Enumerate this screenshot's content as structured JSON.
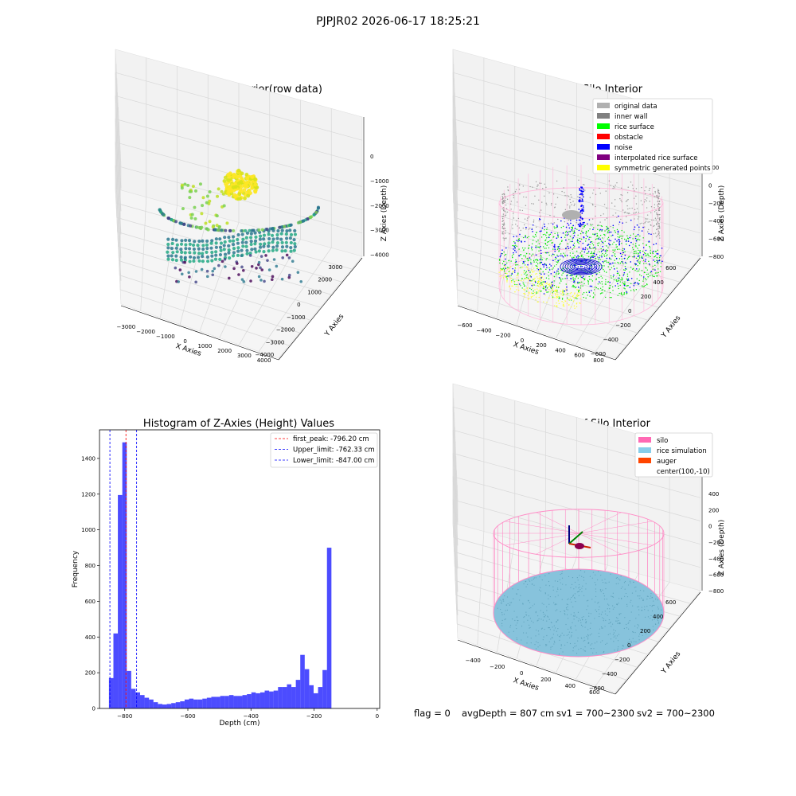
{
  "figure": {
    "suptitle": "PJPJR02 2026-06-17 18:25:21",
    "status": {
      "flag": "flag = 0",
      "avg_depth": "avgDepth = 807 cm",
      "sv1": "sv1 = 700~2300",
      "sv2": "sv2 = 700~2300"
    }
  },
  "chart_data": [
    {
      "id": "raw",
      "type": "scatter",
      "title": "3D Plot of Silo Interior(row data)",
      "xlabel": "X Axies",
      "ylabel": "Y Axies",
      "zlabel": "Z Axies (Depth)",
      "x_ticks": [
        "−3000",
        "−2000",
        "−1000",
        "0",
        "1000",
        "2000",
        "3000",
        "4000"
      ],
      "y_ticks": [
        "−4000",
        "−3000",
        "−2000",
        "−1000",
        "0",
        "1000",
        "2000",
        "3000"
      ],
      "z_ticks": [
        "−4000",
        "−3000",
        "−2000",
        "−1000",
        "0"
      ],
      "colormap": "viridis"
    },
    {
      "id": "classify",
      "type": "scatter",
      "title": "3D classify of Silo Interior",
      "xlabel": "X Axies",
      "ylabel": "Y Axies",
      "zlabel": "Z Axies (Depth)",
      "x_ticks": [
        "−600",
        "−400",
        "−200",
        "0",
        "200",
        "400",
        "600",
        "800"
      ],
      "y_ticks": [
        "−600",
        "−400",
        "−200",
        "0",
        "200",
        "400",
        "600"
      ],
      "z_ticks": [
        "−800",
        "−600",
        "−400",
        "−200",
        "0",
        "200"
      ],
      "legend": [
        {
          "label": "original data",
          "color": "#b0b0b0"
        },
        {
          "label": "inner wall",
          "color": "#808080"
        },
        {
          "label": "rice surface",
          "color": "#00ff00"
        },
        {
          "label": "obstacle",
          "color": "#ff0000"
        },
        {
          "label": "noise",
          "color": "#0000ff"
        },
        {
          "label": "interpolated rice surface",
          "color": "#800080"
        },
        {
          "label": "symmetric generated points",
          "color": "#ffff00"
        }
      ],
      "legend_position": "top-right"
    },
    {
      "id": "hist",
      "type": "bar",
      "title": "Histogram of Z-Axies (Height) Values",
      "xlabel": "Depth (cm)",
      "ylabel": "Frequency",
      "xlim": [
        -880,
        8
      ],
      "ylim": [
        0,
        1560
      ],
      "x_ticks": [
        -800,
        -600,
        -400,
        -200,
        0
      ],
      "y_ticks": [
        0,
        200,
        400,
        600,
        800,
        1000,
        1200,
        1400
      ],
      "bin_start": -850,
      "bin_width": 14.1,
      "counts": [
        170,
        420,
        1195,
        1490,
        210,
        110,
        90,
        75,
        60,
        50,
        35,
        25,
        22,
        25,
        30,
        35,
        40,
        50,
        55,
        50,
        50,
        55,
        60,
        65,
        65,
        70,
        70,
        75,
        70,
        70,
        75,
        80,
        90,
        85,
        90,
        100,
        95,
        100,
        120,
        120,
        135,
        120,
        160,
        300,
        220,
        130,
        85,
        120,
        215,
        900
      ],
      "bar_color": "#0000ff",
      "vlines": [
        {
          "label": "first_peak: -796.20 cm",
          "x": -796.2,
          "color": "#ff0000"
        },
        {
          "label": "Upper_limit: -762.33 cm",
          "x": -762.33,
          "color": "#0000ff"
        },
        {
          "label": "Lower_limit: -847.00 cm",
          "x": -847.0,
          "color": "#0000ff"
        }
      ],
      "legend_position": "top-right"
    },
    {
      "id": "sim",
      "type": "scatter",
      "title": "3D simulation of Silo Interior",
      "xlabel": "X Axies",
      "ylabel": "Y Axies",
      "zlabel": "Z Axies (Depth)",
      "x_ticks": [
        "−400",
        "−200",
        "0",
        "200",
        "400",
        "600"
      ],
      "y_ticks": [
        "−600",
        "−400",
        "−200",
        "0",
        "200",
        "400",
        "600"
      ],
      "z_ticks": [
        "−800",
        "−600",
        "−400",
        "−200",
        "0",
        "200",
        "400"
      ],
      "legend": [
        {
          "label": "silo",
          "color": "#ff69b4"
        },
        {
          "label": "rice simulation",
          "color": "#87ceeb"
        },
        {
          "label": "auger",
          "color": "#ff4500"
        },
        {
          "label": "center(100,-10)",
          "color": ""
        }
      ],
      "legend_position": "top-right"
    }
  ]
}
